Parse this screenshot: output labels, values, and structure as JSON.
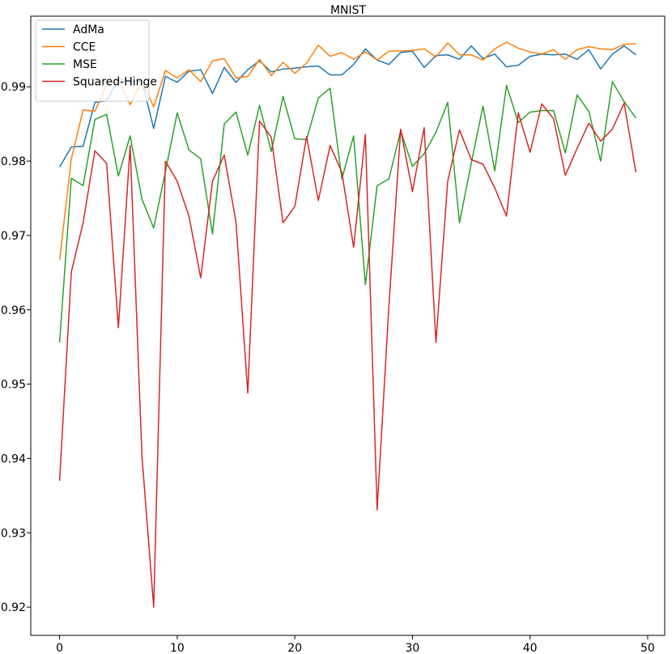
{
  "chart_data": {
    "type": "line",
    "title": "MNIST",
    "xlabel": "",
    "ylabel": "",
    "xlim": [
      -2.45,
      51.45
    ],
    "ylim": [
      0.9162,
      0.9995
    ],
    "xticks": [
      0,
      10,
      20,
      30,
      40,
      50
    ],
    "yticks": [
      0.92,
      0.93,
      0.94,
      0.95,
      0.96,
      0.97,
      0.98,
      0.99
    ],
    "xtick_labels": [
      "0",
      "10",
      "20",
      "30",
      "40",
      "50"
    ],
    "ytick_labels": [
      "0.92",
      "0.93",
      "0.94",
      "0.95",
      "0.96",
      "0.97",
      "0.98",
      "0.99"
    ],
    "grid": false,
    "legend_position": "top-left",
    "x": [
      0,
      1,
      2,
      3,
      4,
      5,
      6,
      7,
      8,
      9,
      10,
      11,
      12,
      13,
      14,
      15,
      16,
      17,
      18,
      19,
      20,
      21,
      22,
      23,
      24,
      25,
      26,
      27,
      28,
      29,
      30,
      31,
      32,
      33,
      34,
      35,
      36,
      37,
      38,
      39,
      40,
      41,
      42,
      43,
      44,
      45,
      46,
      47,
      48,
      49
    ],
    "series": [
      {
        "name": "AdMa",
        "color": "#1f77b4",
        "values": [
          0.9792,
          0.9819,
          0.982,
          0.9879,
          0.9881,
          0.9911,
          0.9907,
          0.9908,
          0.9844,
          0.9914,
          0.9906,
          0.9921,
          0.9923,
          0.9891,
          0.9926,
          0.9906,
          0.9923,
          0.9935,
          0.992,
          0.9924,
          0.9925,
          0.9927,
          0.9928,
          0.9916,
          0.9916,
          0.993,
          0.9951,
          0.9936,
          0.993,
          0.9946,
          0.9948,
          0.9926,
          0.9942,
          0.9943,
          0.9937,
          0.9955,
          0.9938,
          0.9944,
          0.9927,
          0.9929,
          0.9941,
          0.9944,
          0.9943,
          0.9944,
          0.9937,
          0.995,
          0.9924,
          0.9944,
          0.9955,
          0.9943
        ]
      },
      {
        "name": "CCE",
        "color": "#ff7f0e",
        "values": [
          0.9667,
          0.9803,
          0.9869,
          0.9867,
          0.9903,
          0.991,
          0.9876,
          0.9907,
          0.9873,
          0.9922,
          0.9912,
          0.9923,
          0.9907,
          0.9935,
          0.9938,
          0.9912,
          0.9914,
          0.9937,
          0.9915,
          0.9933,
          0.9918,
          0.9932,
          0.9956,
          0.9941,
          0.9946,
          0.9937,
          0.9947,
          0.9936,
          0.9948,
          0.9948,
          0.9949,
          0.9951,
          0.994,
          0.9959,
          0.9943,
          0.9943,
          0.9936,
          0.9951,
          0.996,
          0.9952,
          0.9947,
          0.9944,
          0.995,
          0.9937,
          0.995,
          0.9954,
          0.9951,
          0.995,
          0.9957,
          0.9958
        ]
      },
      {
        "name": "MSE",
        "color": "#2ca02c",
        "values": [
          0.9556,
          0.9777,
          0.9767,
          0.9856,
          0.9863,
          0.978,
          0.9834,
          0.9749,
          0.971,
          0.9786,
          0.9865,
          0.9815,
          0.9803,
          0.9702,
          0.985,
          0.9866,
          0.9808,
          0.9875,
          0.9813,
          0.9887,
          0.983,
          0.9829,
          0.9885,
          0.9898,
          0.9776,
          0.9834,
          0.9634,
          0.9767,
          0.9776,
          0.9841,
          0.9793,
          0.981,
          0.9839,
          0.9879,
          0.9717,
          0.9797,
          0.9874,
          0.9787,
          0.9902,
          0.9852,
          0.9866,
          0.9868,
          0.9868,
          0.9811,
          0.9889,
          0.9867,
          0.98,
          0.9907,
          0.988,
          0.9858
        ]
      },
      {
        "name": "Squared-Hinge",
        "color": "#d62728",
        "values": [
          0.937,
          0.9651,
          0.9717,
          0.9814,
          0.9797,
          0.9576,
          0.9821,
          0.9404,
          0.92,
          0.98,
          0.9773,
          0.9726,
          0.9643,
          0.9773,
          0.9808,
          0.9718,
          0.9488,
          0.9854,
          0.9832,
          0.9717,
          0.9739,
          0.9833,
          0.9747,
          0.9821,
          0.9785,
          0.9684,
          0.9836,
          0.9331,
          0.9605,
          0.9843,
          0.9759,
          0.9845,
          0.9556,
          0.9773,
          0.9842,
          0.9802,
          0.9796,
          0.9764,
          0.9726,
          0.9865,
          0.9812,
          0.9877,
          0.9857,
          0.9781,
          0.9817,
          0.9851,
          0.9827,
          0.9843,
          0.9878,
          0.9785
        ]
      }
    ]
  }
}
